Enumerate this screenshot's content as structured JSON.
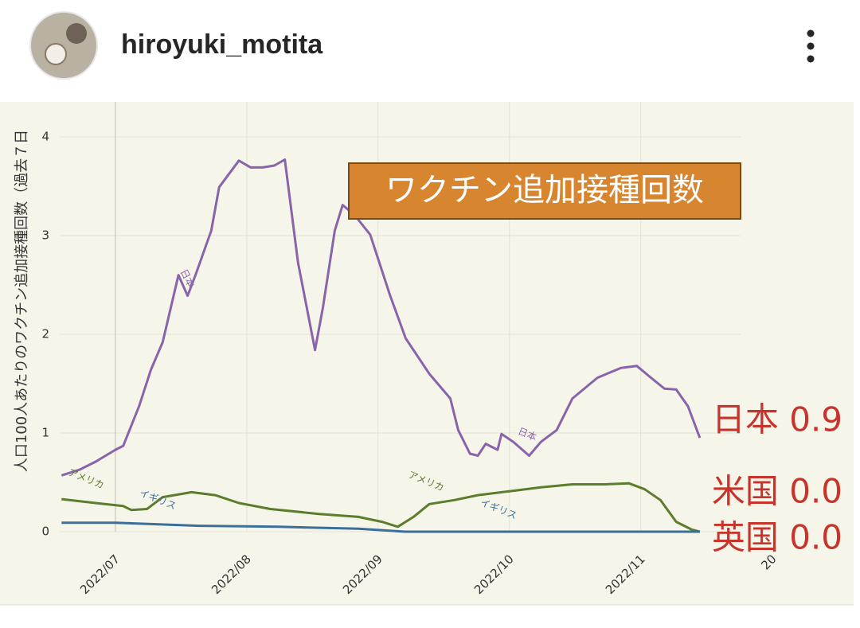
{
  "header": {
    "username": "hiroyuki_motita"
  },
  "chart_data": {
    "type": "line",
    "title": "ワクチン追加接種回数",
    "y_label": "人口100人あたりのワクチン追加接種回数（過去７日",
    "xlim": [
      6.576,
      11.76
    ],
    "ylim": [
      0,
      4.3
    ],
    "xticks": [
      {
        "value": 7,
        "label": "2022/07"
      },
      {
        "value": 8,
        "label": "2022/08"
      },
      {
        "value": 9,
        "label": "2022/09"
      },
      {
        "value": 10,
        "label": "2022/10"
      },
      {
        "value": 11,
        "label": "2022/11"
      },
      {
        "value": 12,
        "label": "20"
      }
    ],
    "yticks": [
      0,
      1,
      2,
      3,
      4
    ],
    "grid": true,
    "series": [
      {
        "name": "日本",
        "color": "#8a64ab",
        "x": [
          6.59,
          6.73,
          6.85,
          7.0,
          7.06,
          7.18,
          7.27,
          7.36,
          7.48,
          7.55,
          7.61,
          7.73,
          7.79,
          7.94,
          8.03,
          8.12,
          8.21,
          8.29,
          8.39,
          8.52,
          8.58,
          8.67,
          8.73,
          8.82,
          8.94,
          9.09,
          9.21,
          9.39,
          9.55,
          9.61,
          9.7,
          9.76,
          9.82,
          9.91,
          9.94,
          10.03,
          10.15,
          10.24,
          10.36,
          10.48,
          10.67,
          10.85,
          10.97,
          11.06,
          11.18,
          11.27,
          11.36,
          11.45
        ],
        "values": [
          0.57,
          0.63,
          0.71,
          0.83,
          0.87,
          1.27,
          1.64,
          1.92,
          2.6,
          2.39,
          2.6,
          3.05,
          3.49,
          3.76,
          3.69,
          3.69,
          3.71,
          3.77,
          2.73,
          1.84,
          2.27,
          3.05,
          3.31,
          3.21,
          3.01,
          2.4,
          1.96,
          1.6,
          1.35,
          1.03,
          0.79,
          0.77,
          0.89,
          0.83,
          0.99,
          0.91,
          0.77,
          0.91,
          1.03,
          1.35,
          1.56,
          1.66,
          1.68,
          1.58,
          1.45,
          1.44,
          1.27,
          0.95
        ]
      },
      {
        "name": "米国",
        "color": "#5b7d2c",
        "x": [
          6.59,
          6.85,
          7.06,
          7.12,
          7.24,
          7.36,
          7.58,
          7.76,
          7.94,
          8.18,
          8.55,
          8.85,
          9.03,
          9.15,
          9.27,
          9.39,
          9.58,
          9.76,
          10.0,
          10.24,
          10.48,
          10.73,
          10.91,
          11.03,
          11.15,
          11.27,
          11.39,
          11.45
        ],
        "values": [
          0.33,
          0.29,
          0.26,
          0.22,
          0.23,
          0.35,
          0.4,
          0.37,
          0.29,
          0.23,
          0.18,
          0.15,
          0.1,
          0.05,
          0.15,
          0.28,
          0.32,
          0.37,
          0.41,
          0.45,
          0.48,
          0.48,
          0.49,
          0.43,
          0.32,
          0.1,
          0.02,
          0.0
        ]
      },
      {
        "name": "英国",
        "color": "#3b6f9a",
        "x": [
          6.59,
          7.0,
          7.64,
          8.24,
          8.85,
          9.21,
          11.45
        ],
        "values": [
          0.09,
          0.09,
          0.06,
          0.05,
          0.03,
          0.0,
          0.0
        ]
      }
    ],
    "end_labels": [
      "日本 0.9",
      "米国 0.0",
      "英国 0.0"
    ],
    "line_labels": [
      "日本",
      "日本",
      "アメリカ",
      "アメリカ",
      "イギリス",
      "イギリス"
    ]
  }
}
